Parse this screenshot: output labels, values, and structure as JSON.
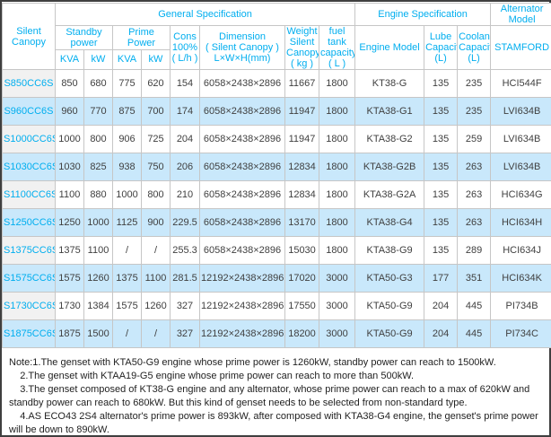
{
  "colors": {
    "header_text": "#00AEEF",
    "row_highlight": "#C9E8FB",
    "model_column_bg": "#F1F1F1",
    "grid_line": "#C6C6C6",
    "frame": "#3F3F3F",
    "body_text": "#404040"
  },
  "table": {
    "groups": {
      "general": "General Specification",
      "engine": "Engine Specification",
      "alternator": "Alternator\nModel"
    },
    "columns": {
      "silent_canopy": "Silent Canopy",
      "standby_power": "Standby\npower",
      "prime_power": "Prime Power",
      "kva": "KVA",
      "kw": "kW",
      "cons": "Cons\n100%\n( L/h )",
      "dimension": "Dimension\n( Silent Canopy )\nL×W×H(mm)",
      "weight": "Weight\nSilent\nCanopy\n( kg )",
      "fuel_tank": "fuel tank\ncapacity\n( L )",
      "engine_model": "Engine Model",
      "lube": "Lube\nCapacity\n(L)",
      "coolant": "Coolant\nCapacity\n(L)",
      "stamford": "STAMFORD"
    },
    "rows": [
      {
        "model": "S850CC6S",
        "standby_kva": "850",
        "standby_kw": "680",
        "prime_kva": "775",
        "prime_kw": "620",
        "cons": "154",
        "dimension": "6058×2438×2896",
        "weight": "11667",
        "fuel_tank": "1800",
        "engine_model": "KT38-G",
        "lube": "135",
        "coolant": "235",
        "alternator": "HCI544F"
      },
      {
        "model": "S960CC6S",
        "standby_kva": "960",
        "standby_kw": "770",
        "prime_kva": "875",
        "prime_kw": "700",
        "cons": "174",
        "dimension": "6058×2438×2896",
        "weight": "11947",
        "fuel_tank": "1800",
        "engine_model": "KTA38-G1",
        "lube": "135",
        "coolant": "235",
        "alternator": "LVI634B"
      },
      {
        "model": "S1000CC6S",
        "standby_kva": "1000",
        "standby_kw": "800",
        "prime_kva": "906",
        "prime_kw": "725",
        "cons": "204",
        "dimension": "6058×2438×2896",
        "weight": "11947",
        "fuel_tank": "1800",
        "engine_model": "KTA38-G2",
        "lube": "135",
        "coolant": "259",
        "alternator": "LVI634B"
      },
      {
        "model": "S1030CC6S",
        "standby_kva": "1030",
        "standby_kw": "825",
        "prime_kva": "938",
        "prime_kw": "750",
        "cons": "206",
        "dimension": "6058×2438×2896",
        "weight": "12834",
        "fuel_tank": "1800",
        "engine_model": "KTA38-G2B",
        "lube": "135",
        "coolant": "263",
        "alternator": "LVI634B"
      },
      {
        "model": "S1100CC6S",
        "standby_kva": "1100",
        "standby_kw": "880",
        "prime_kva": "1000",
        "prime_kw": "800",
        "cons": "210",
        "dimension": "6058×2438×2896",
        "weight": "12834",
        "fuel_tank": "1800",
        "engine_model": "KTA38-G2A",
        "lube": "135",
        "coolant": "263",
        "alternator": "HCI634G"
      },
      {
        "model": "S1250CC6S",
        "standby_kva": "1250",
        "standby_kw": "1000",
        "prime_kva": "1125",
        "prime_kw": "900",
        "cons": "229.5",
        "dimension": "6058×2438×2896",
        "weight": "13170",
        "fuel_tank": "1800",
        "engine_model": "KTA38-G4",
        "lube": "135",
        "coolant": "263",
        "alternator": "HCI634H"
      },
      {
        "model": "S1375CC6S",
        "standby_kva": "1375",
        "standby_kw": "1100",
        "prime_kva": "/",
        "prime_kw": "/",
        "cons": "255.3",
        "dimension": "6058×2438×2896",
        "weight": "15030",
        "fuel_tank": "1800",
        "engine_model": "KTA38-G9",
        "lube": "135",
        "coolant": "289",
        "alternator": "HCI634J"
      },
      {
        "model": "S1575CC6S",
        "standby_kva": "1575",
        "standby_kw": "1260",
        "prime_kva": "1375",
        "prime_kw": "1100",
        "cons": "281.5",
        "dimension": "12192×2438×2896",
        "weight": "17020",
        "fuel_tank": "3000",
        "engine_model": "KTA50-G3",
        "lube": "177",
        "coolant": "351",
        "alternator": "HCI634K"
      },
      {
        "model": "S1730CC6S",
        "standby_kva": "1730",
        "standby_kw": "1384",
        "prime_kva": "1575",
        "prime_kw": "1260",
        "cons": "327",
        "dimension": "12192×2438×2896",
        "weight": "17550",
        "fuel_tank": "3000",
        "engine_model": "KTA50-G9",
        "lube": "204",
        "coolant": "445",
        "alternator": "PI734B"
      },
      {
        "model": "S1875CC6S",
        "standby_kva": "1875",
        "standby_kw": "1500",
        "prime_kva": "/",
        "prime_kw": "/",
        "cons": "327",
        "dimension": "12192×2438×2896",
        "weight": "18200",
        "fuel_tank": "3000",
        "engine_model": "KTA50-G9",
        "lube": "204",
        "coolant": "445",
        "alternator": "PI734C"
      }
    ]
  },
  "notes": {
    "lines": [
      "Note:1.The genset with KTA50-G9 engine whose prime power is 1260kW, standby power can reach to 1500kW.",
      "    2.The genset with KTAA19-G5 engine whose prime power can reach to more than 500kW.",
      "    3.The genset composed of KT38-G engine and any alternator, whose prime power can reach to a max of 620kW and standby power can reach to 680kW. But this kind of genset needs to be selected from non-standard type.",
      "    4.AS ECO43 2S4 alternator's prime power is 893kW, after composed with KTA38-G4 engine, the genset's prime power will be down to 890kW."
    ]
  }
}
